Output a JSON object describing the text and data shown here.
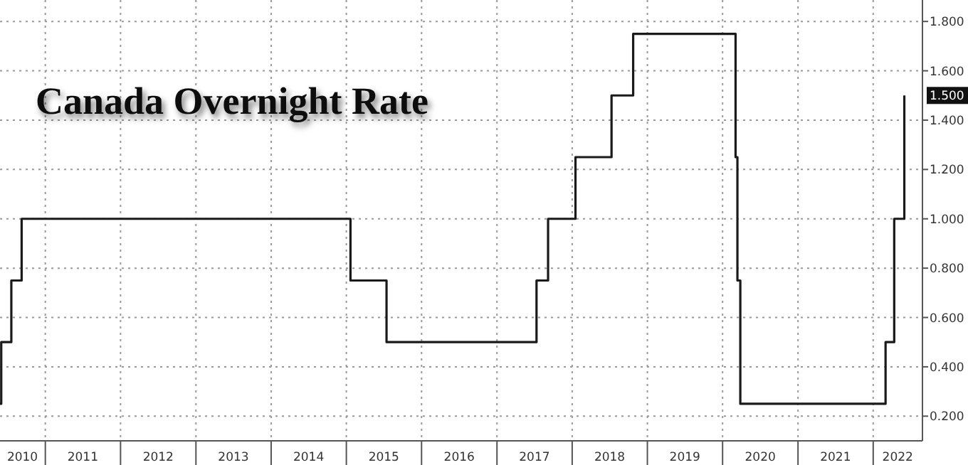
{
  "chart_data": {
    "type": "step",
    "title": "Canada Overnight Rate",
    "x": [
      "2010-05-26",
      "2010-06-01",
      "2010-07-20",
      "2010-09-08",
      "2015-01-21",
      "2015-07-15",
      "2017-07-12",
      "2017-09-06",
      "2018-01-17",
      "2018-07-11",
      "2018-10-24",
      "2020-03-04",
      "2020-03-13",
      "2020-03-27",
      "2022-03-02",
      "2022-04-13",
      "2022-06-01"
    ],
    "series": [
      {
        "color": "#1a1a1a",
        "values": [
          0.25,
          0.5,
          0.75,
          1.0,
          0.75,
          0.5,
          0.75,
          1.0,
          1.25,
          1.5,
          1.75,
          1.25,
          0.75,
          0.25,
          0.5,
          1.0,
          1.5
        ]
      }
    ],
    "xlim": [
      "2010-05-26",
      "2022-08-28"
    ],
    "xticks": [
      {
        "value": "2011",
        "label": null
      },
      {
        "value": "2012",
        "label": null
      },
      {
        "value": "2013",
        "label": null
      },
      {
        "value": "2014",
        "label": null
      },
      {
        "value": "2015",
        "label": null
      },
      {
        "value": "2016",
        "label": null
      },
      {
        "value": "2017",
        "label": null
      },
      {
        "value": "2018",
        "label": null
      },
      {
        "value": "2019",
        "label": null
      },
      {
        "value": "2020",
        "label": null
      },
      {
        "value": "2021",
        "label": null
      },
      {
        "value": "2022",
        "label": null
      },
      {
        "value": "2010-09-12",
        "label": "2010"
      },
      {
        "value": "2011-07-02",
        "label": "2011"
      },
      {
        "value": "2012-07-02",
        "label": "2012"
      },
      {
        "value": "2013-07-02",
        "label": "2013"
      },
      {
        "value": "2014-07-02",
        "label": "2014"
      },
      {
        "value": "2015-07-02",
        "label": "2015"
      },
      {
        "value": "2016-07-02",
        "label": "2016"
      },
      {
        "value": "2017-07-02",
        "label": "2017"
      },
      {
        "value": "2018-07-02",
        "label": "2018"
      },
      {
        "value": "2019-07-02",
        "label": "2019"
      },
      {
        "value": "2020-07-02",
        "label": "2020"
      },
      {
        "value": "2021-07-02",
        "label": "2021"
      },
      {
        "value": "2022-04-30",
        "label": "2022"
      }
    ],
    "ylim": [
      0.1,
      1.887
    ],
    "yticks": [
      {
        "value": 0.2,
        "label": "0.200"
      },
      {
        "value": 0.4,
        "label": "0.400"
      },
      {
        "value": 0.6,
        "label": "0.600"
      },
      {
        "value": 0.8,
        "label": "0.800"
      },
      {
        "value": 1.0,
        "label": "1.000"
      },
      {
        "value": 1.2,
        "label": "1.200"
      },
      {
        "value": 1.4,
        "label": "1.400"
      },
      {
        "value": 1.6,
        "label": "1.600"
      },
      {
        "value": 1.8,
        "label": "1.800"
      }
    ],
    "annotations": [
      {
        "text": "1.500",
        "y": 1.5
      }
    ],
    "grid": true,
    "line_style": "solid",
    "marker": "none"
  }
}
